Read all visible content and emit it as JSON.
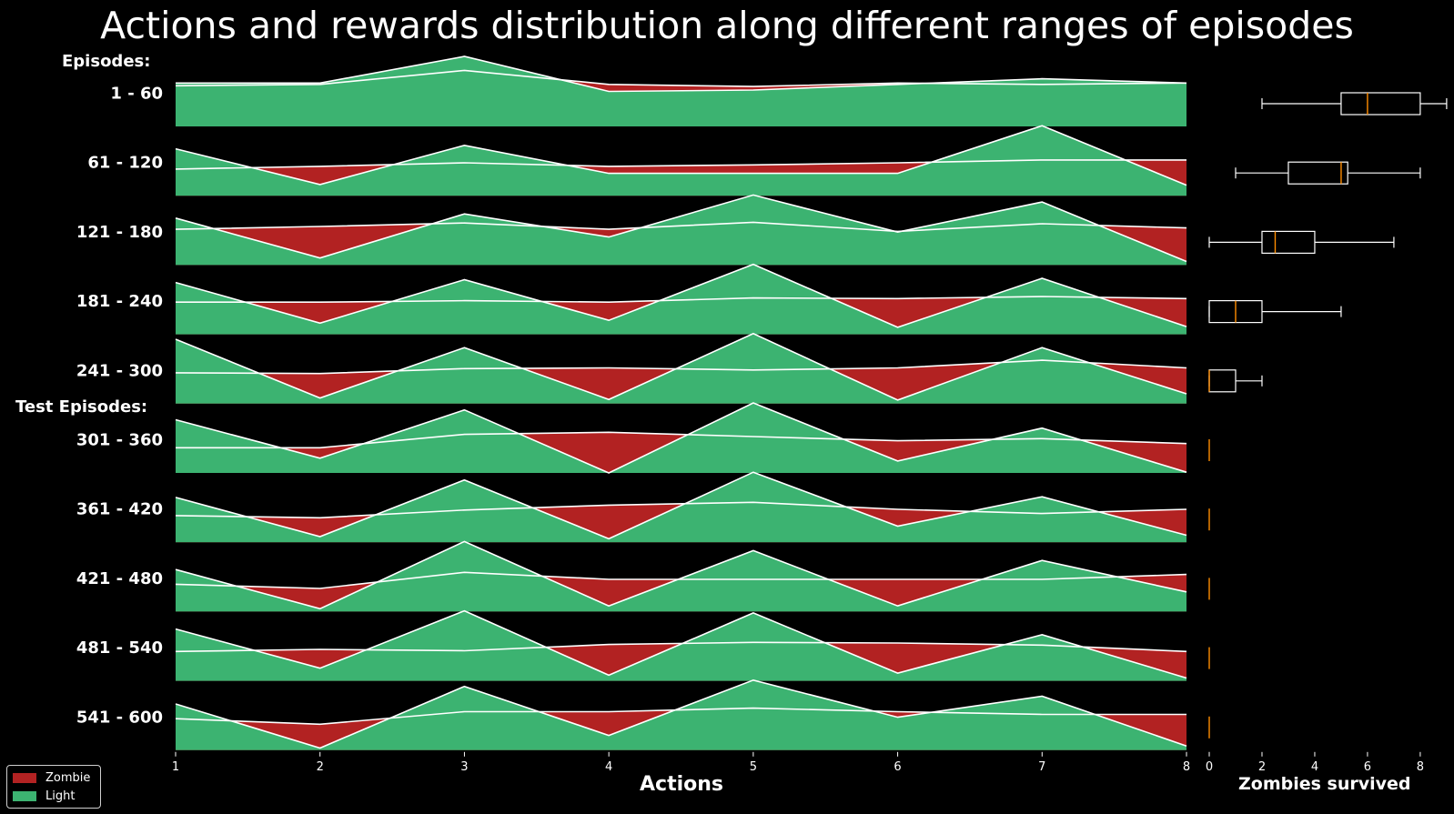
{
  "title": "Actions and rewards distribution along different ranges of episodes",
  "section_labels": {
    "episodes": "Episodes:",
    "test_episodes": "Test Episodes:"
  },
  "colors": {
    "zombie": "#b22222",
    "light": "#3cb371",
    "background": "#000000",
    "line": "#ffffff",
    "median": "#ff8c00"
  },
  "legend": [
    {
      "label": "Zombie",
      "color": "#b22222"
    },
    {
      "label": "Light",
      "color": "#3cb371"
    }
  ],
  "chart_data": [
    {
      "type": "area",
      "subtype": "ridgeline",
      "title": "Actions and rewards distribution along different ranges of episodes",
      "xlabel": "Actions",
      "x": [
        1,
        2,
        3,
        4,
        5,
        6,
        7,
        8
      ],
      "xlim": [
        1,
        8
      ],
      "legend_position": "bottom-left",
      "series_names": [
        "Zombie",
        "Light"
      ],
      "ridges": [
        {
          "label": "1 - 60",
          "light": [
            0.62,
            0.62,
            1.0,
            0.5,
            0.52,
            0.6,
            0.68,
            0.62
          ],
          "zombie": [
            0.58,
            0.6,
            0.8,
            0.6,
            0.57,
            0.62,
            0.6,
            0.62
          ]
        },
        {
          "label": "61 - 120",
          "light": [
            0.67,
            0.16,
            0.72,
            0.32,
            0.32,
            0.32,
            1.0,
            0.15
          ],
          "zombie": [
            0.38,
            0.42,
            0.47,
            0.42,
            0.44,
            0.47,
            0.51,
            0.51
          ]
        },
        {
          "label": "121 - 180",
          "light": [
            0.67,
            0.1,
            0.73,
            0.4,
            1.0,
            0.47,
            0.9,
            0.05
          ],
          "zombie": [
            0.51,
            0.55,
            0.6,
            0.51,
            0.61,
            0.48,
            0.59,
            0.53
          ]
        },
        {
          "label": "181 - 240",
          "light": [
            0.74,
            0.16,
            0.78,
            0.2,
            1.0,
            0.1,
            0.8,
            0.11
          ],
          "zombie": [
            0.46,
            0.46,
            0.48,
            0.46,
            0.52,
            0.51,
            0.54,
            0.51
          ]
        },
        {
          "label": "241 - 300",
          "light": [
            0.92,
            0.08,
            0.8,
            0.06,
            1.0,
            0.05,
            0.8,
            0.14
          ],
          "zombie": [
            0.44,
            0.43,
            0.5,
            0.51,
            0.48,
            0.51,
            0.62,
            0.51
          ]
        },
        {
          "label": "301 - 360",
          "light": [
            0.76,
            0.21,
            0.9,
            0.0,
            1.0,
            0.17,
            0.64,
            0.01
          ],
          "zombie": [
            0.36,
            0.36,
            0.55,
            0.58,
            0.52,
            0.46,
            0.49,
            0.42
          ]
        },
        {
          "label": "361 - 420",
          "light": [
            0.64,
            0.08,
            0.89,
            0.05,
            1.0,
            0.23,
            0.65,
            0.1
          ],
          "zombie": [
            0.38,
            0.35,
            0.46,
            0.53,
            0.57,
            0.47,
            0.41,
            0.47
          ]
        },
        {
          "label": "421 - 480",
          "light": [
            0.6,
            0.04,
            1.0,
            0.08,
            0.87,
            0.08,
            0.73,
            0.28
          ],
          "zombie": [
            0.39,
            0.33,
            0.56,
            0.46,
            0.46,
            0.46,
            0.46,
            0.53
          ]
        },
        {
          "label": "481 - 540",
          "light": [
            0.74,
            0.18,
            1.0,
            0.08,
            0.97,
            0.11,
            0.66,
            0.04
          ],
          "zombie": [
            0.42,
            0.45,
            0.43,
            0.52,
            0.55,
            0.54,
            0.51,
            0.42
          ]
        },
        {
          "label": "541 - 600",
          "light": [
            0.66,
            0.03,
            0.91,
            0.21,
            1.0,
            0.47,
            0.77,
            0.06
          ],
          "zombie": [
            0.45,
            0.37,
            0.55,
            0.55,
            0.6,
            0.55,
            0.51,
            0.51
          ]
        }
      ]
    },
    {
      "type": "box",
      "orientation": "horizontal",
      "xlabel": "Zombies survived",
      "xlim": [
        0,
        8.9
      ],
      "xticks": [
        0,
        2,
        4,
        6,
        8
      ],
      "boxes": [
        {
          "label": "1 - 60",
          "whisker_low": 2,
          "q1": 5,
          "median": 6,
          "q3": 8,
          "whisker_high": 9
        },
        {
          "label": "61 - 120",
          "whisker_low": 1,
          "q1": 3,
          "median": 5,
          "q3": 5.25,
          "whisker_high": 8
        },
        {
          "label": "121 - 180",
          "whisker_low": 0,
          "q1": 2,
          "median": 2.5,
          "q3": 4,
          "whisker_high": 7
        },
        {
          "label": "181 - 240",
          "whisker_low": 0,
          "q1": 0,
          "median": 1,
          "q3": 2,
          "whisker_high": 5
        },
        {
          "label": "241 - 300",
          "whisker_low": 0,
          "q1": 0,
          "median": 0,
          "q3": 1,
          "whisker_high": 2
        },
        {
          "label": "301 - 360",
          "whisker_low": 0,
          "q1": 0,
          "median": 0,
          "q3": 0,
          "whisker_high": 0
        },
        {
          "label": "361 - 420",
          "whisker_low": 0,
          "q1": 0,
          "median": 0,
          "q3": 0,
          "whisker_high": 0
        },
        {
          "label": "421 - 480",
          "whisker_low": 0,
          "q1": 0,
          "median": 0,
          "q3": 0,
          "whisker_high": 0
        },
        {
          "label": "481 - 540",
          "whisker_low": 0,
          "q1": 0,
          "median": 0,
          "q3": 0,
          "whisker_high": 0
        },
        {
          "label": "541 - 600",
          "whisker_low": 0,
          "q1": 0,
          "median": 0,
          "q3": 0,
          "whisker_high": 0
        }
      ]
    }
  ]
}
